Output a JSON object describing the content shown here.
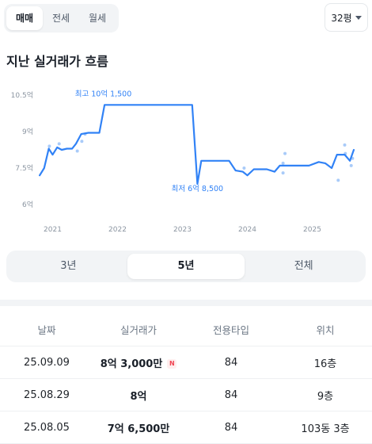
{
  "deal_tabs": [
    {
      "label": "매매",
      "active": true
    },
    {
      "label": "전세",
      "active": false
    },
    {
      "label": "월세",
      "active": false
    }
  ],
  "size_select": {
    "value": "32평"
  },
  "section_title": "지난 실거래가 흐름",
  "chart_data": {
    "type": "line",
    "y_ticks": [
      "10.5억",
      "9억",
      "7.5억",
      "6억"
    ],
    "y_tick_values": [
      10.5,
      9,
      7.5,
      6
    ],
    "ylim": [
      6,
      10.5
    ],
    "x_ticks": [
      "2021",
      "2022",
      "2023",
      "2024",
      "2025"
    ],
    "x_tick_values": [
      2021,
      2022,
      2023,
      2024,
      2025
    ],
    "xlim": [
      2020.75,
      2025.75
    ],
    "series": [
      {
        "points": [
          [
            2020.8,
            7.2
          ],
          [
            2020.87,
            7.5
          ],
          [
            2020.94,
            8.3
          ],
          [
            2021.0,
            8.05
          ],
          [
            2021.07,
            8.35
          ],
          [
            2021.14,
            8.25
          ],
          [
            2021.22,
            8.3
          ],
          [
            2021.3,
            8.3
          ],
          [
            2021.36,
            8.5
          ],
          [
            2021.44,
            8.9
          ],
          [
            2021.55,
            8.95
          ],
          [
            2021.72,
            8.95
          ],
          [
            2021.8,
            10.1
          ],
          [
            2022.9,
            10.1
          ],
          [
            2023.15,
            10.1
          ],
          [
            2023.23,
            6.85
          ],
          [
            2023.29,
            7.8
          ],
          [
            2023.6,
            7.8
          ],
          [
            2023.72,
            7.8
          ],
          [
            2023.82,
            7.4
          ],
          [
            2023.93,
            7.35
          ],
          [
            2024.0,
            7.2
          ],
          [
            2024.1,
            7.45
          ],
          [
            2024.3,
            7.45
          ],
          [
            2024.42,
            7.35
          ],
          [
            2024.5,
            7.6
          ],
          [
            2024.7,
            7.6
          ],
          [
            2024.8,
            7.6
          ],
          [
            2024.95,
            7.6
          ],
          [
            2025.1,
            7.75
          ],
          [
            2025.2,
            7.7
          ],
          [
            2025.3,
            7.5
          ],
          [
            2025.38,
            8.05
          ],
          [
            2025.5,
            8.05
          ],
          [
            2025.58,
            7.8
          ],
          [
            2025.64,
            8.25
          ]
        ]
      }
    ],
    "scatter_points": [
      [
        2020.95,
        8.4
      ],
      [
        2021.1,
        8.5
      ],
      [
        2021.38,
        8.2
      ],
      [
        2021.45,
        8.6
      ],
      [
        2021.5,
        8.9
      ],
      [
        2023.95,
        7.5
      ],
      [
        2024.55,
        7.3
      ],
      [
        2024.55,
        7.7
      ],
      [
        2024.58,
        8.1
      ],
      [
        2025.4,
        7.0
      ],
      [
        2025.5,
        8.45
      ],
      [
        2025.51,
        8.1
      ],
      [
        2025.6,
        7.6
      ],
      [
        2025.62,
        7.9
      ]
    ],
    "annotations": [
      {
        "label": "최고 10억 1,500",
        "x": 2022.0,
        "y": 10.15
      },
      {
        "label": "최저 6억 8,500",
        "x": 2023.23,
        "y": 6.85
      }
    ],
    "grid": false,
    "line_color": "#3182f6",
    "scatter_color": "#a9cbf9"
  },
  "range_tabs": [
    {
      "label": "3년",
      "active": false
    },
    {
      "label": "5년",
      "active": true
    },
    {
      "label": "전체",
      "active": false
    }
  ],
  "table": {
    "headers": [
      "날짜",
      "실거래가",
      "전용타입",
      "위치"
    ],
    "rows": [
      {
        "date": "25.09.09",
        "price": "8억 3,000만",
        "badge": "N",
        "type": "84",
        "location": "16층"
      },
      {
        "date": "25.08.29",
        "price": "8억",
        "badge": "",
        "type": "84",
        "location": "9층"
      },
      {
        "date": "25.08.05",
        "price": "7억 6,500만",
        "badge": "",
        "type": "84",
        "location": "103동 3층"
      }
    ]
  },
  "colors": {
    "accent": "#3182f6",
    "new_badge": "#f04452"
  }
}
